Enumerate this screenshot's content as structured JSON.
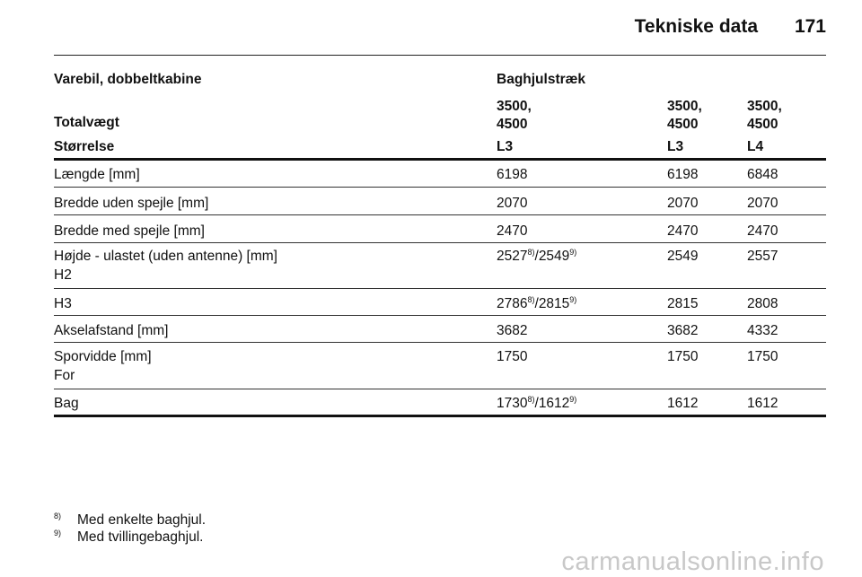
{
  "header": {
    "title": "Tekniske data",
    "page_number": "171"
  },
  "table": {
    "vehicle": "Varebil, dobbeltkabine",
    "drive": "Baghjulstræk",
    "weight_label": "Totalvægt",
    "weight_values": [
      "3500,\n4500",
      "3500,\n4500",
      "3500,\n4500"
    ],
    "size_label": "Størrelse",
    "sizes": [
      "L3",
      "L3",
      "L4"
    ],
    "rows": [
      {
        "label": "Længde [mm]",
        "values": [
          "6198",
          "6198",
          "6848"
        ]
      },
      {
        "label": "Bredde uden spejle [mm]",
        "values": [
          "2070",
          "2070",
          "2070"
        ]
      },
      {
        "label": "Bredde med spejle [mm]",
        "values": [
          "2470",
          "2470",
          "2470"
        ]
      },
      {
        "label": "Højde - ulastet (uden antenne) [mm]",
        "sublabel": "H2",
        "first": {
          "a": "2527",
          "a_sup": "8)",
          "sep": "/",
          "b": "2549",
          "b_sup": "9)"
        },
        "values": [
          "2549",
          "2557"
        ]
      },
      {
        "label": "H3",
        "first": {
          "a": "2786",
          "a_sup": "8)",
          "sep": "/",
          "b": "2815",
          "b_sup": "9)"
        },
        "values": [
          "2815",
          "2808"
        ]
      },
      {
        "label": "Akselafstand [mm]",
        "values": [
          "3682",
          "3682",
          "4332"
        ]
      },
      {
        "label": "Sporvidde [mm]",
        "sublabel": "For",
        "values": [
          "1750",
          "1750",
          "1750"
        ]
      },
      {
        "label": "Bag",
        "first": {
          "a": "1730",
          "a_sup": "8)",
          "sep": "/",
          "b": "1612",
          "b_sup": "9)"
        },
        "values": [
          "1612",
          "1612"
        ]
      }
    ]
  },
  "footnotes": [
    {
      "mark": "8)",
      "text": "Med enkelte baghjul."
    },
    {
      "mark": "9)",
      "text": "Med tvillingebaghjul."
    }
  ],
  "watermark": "carmanualsonline.info"
}
